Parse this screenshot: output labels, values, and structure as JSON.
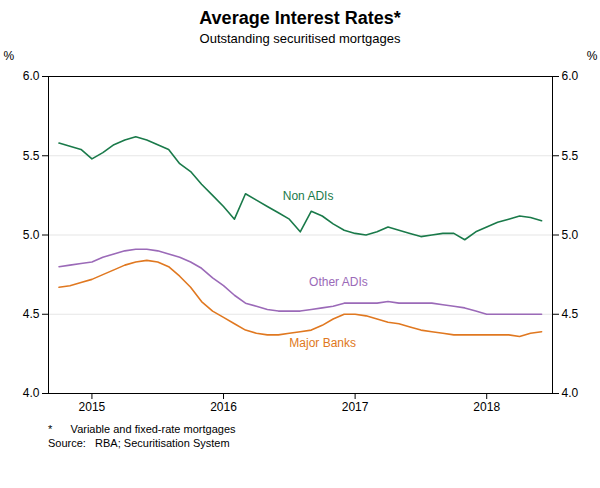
{
  "chart_data": {
    "type": "line",
    "title": "Average Interest Rates*",
    "subtitle": "Outstanding securitised mortgages",
    "ylabel": "%",
    "y2label": "%",
    "footnotes": [
      "*      Variable and fixed-rate mortgages",
      "Source:   RBA; Securitisation System"
    ],
    "x": [
      2014.75,
      2014.833,
      2014.917,
      2015.0,
      2015.083,
      2015.167,
      2015.25,
      2015.333,
      2015.417,
      2015.5,
      2015.583,
      2015.667,
      2015.75,
      2015.833,
      2015.917,
      2016.0,
      2016.083,
      2016.167,
      2016.25,
      2016.333,
      2016.417,
      2016.5,
      2016.583,
      2016.667,
      2016.75,
      2016.833,
      2016.917,
      2017.0,
      2017.083,
      2017.167,
      2017.25,
      2017.333,
      2017.417,
      2017.5,
      2017.583,
      2017.667,
      2017.75,
      2017.833,
      2017.917,
      2018.0,
      2018.083,
      2018.167,
      2018.25,
      2018.333,
      2018.417
    ],
    "series": [
      {
        "name": "Non ADIs",
        "color": "#1a7a4a",
        "values": [
          5.58,
          5.56,
          5.54,
          5.48,
          5.52,
          5.57,
          5.6,
          5.62,
          5.6,
          5.57,
          5.54,
          5.45,
          5.4,
          5.32,
          5.25,
          5.18,
          5.1,
          5.26,
          5.22,
          5.18,
          5.14,
          5.1,
          5.02,
          5.15,
          5.12,
          5.07,
          5.03,
          5.01,
          5.0,
          5.02,
          5.05,
          5.03,
          5.01,
          4.99,
          5.0,
          5.01,
          5.01,
          4.97,
          5.02,
          5.05,
          5.08,
          5.1,
          5.12,
          5.11,
          5.09
        ]
      },
      {
        "name": "Other ADIs",
        "color": "#9b6ab8",
        "values": [
          4.8,
          4.81,
          4.82,
          4.83,
          4.86,
          4.88,
          4.9,
          4.91,
          4.91,
          4.9,
          4.88,
          4.86,
          4.83,
          4.79,
          4.73,
          4.68,
          4.62,
          4.57,
          4.55,
          4.53,
          4.52,
          4.52,
          4.52,
          4.53,
          4.54,
          4.55,
          4.57,
          4.57,
          4.57,
          4.57,
          4.58,
          4.57,
          4.57,
          4.57,
          4.57,
          4.56,
          4.55,
          4.54,
          4.52,
          4.5,
          4.5,
          4.5,
          4.5,
          4.5,
          4.5
        ]
      },
      {
        "name": "Major Banks",
        "color": "#e07820",
        "values": [
          4.67,
          4.68,
          4.7,
          4.72,
          4.75,
          4.78,
          4.81,
          4.83,
          4.84,
          4.83,
          4.8,
          4.74,
          4.67,
          4.58,
          4.52,
          4.48,
          4.44,
          4.4,
          4.38,
          4.37,
          4.37,
          4.38,
          4.39,
          4.4,
          4.43,
          4.47,
          4.5,
          4.5,
          4.49,
          4.47,
          4.45,
          4.44,
          4.42,
          4.4,
          4.39,
          4.38,
          4.37,
          4.37,
          4.37,
          4.37,
          4.37,
          4.37,
          4.36,
          4.38,
          4.39
        ]
      }
    ],
    "annotations": [
      {
        "text": "Non ADIs",
        "x": 2016.45,
        "y": 5.22
      },
      {
        "text": "Other ADIs",
        "x": 2016.65,
        "y": 4.68
      },
      {
        "text": "Major Banks",
        "x": 2016.5,
        "y": 4.295
      }
    ],
    "xlim": [
      2014.67,
      2018.5
    ],
    "xticks": [
      2015,
      2016,
      2017,
      2018
    ],
    "ylim": [
      4.0,
      6.0
    ],
    "yticks": [
      {
        "value": 4.0,
        "label": "4.0"
      },
      {
        "value": 4.5,
        "label": "4.5"
      },
      {
        "value": 5.0,
        "label": "5.0"
      },
      {
        "value": 5.5,
        "label": "5.5"
      },
      {
        "value": 6.0,
        "label": "6.0"
      }
    ],
    "y2lim": [
      4.0,
      6.0
    ],
    "y2ticks": [
      {
        "value": 4.0,
        "label": "4.0"
      },
      {
        "value": 4.5,
        "label": "4.5"
      },
      {
        "value": 5.0,
        "label": "5.0"
      },
      {
        "value": 5.5,
        "label": "5.5"
      },
      {
        "value": 6.0,
        "label": "6.0"
      }
    ],
    "grid": true
  }
}
